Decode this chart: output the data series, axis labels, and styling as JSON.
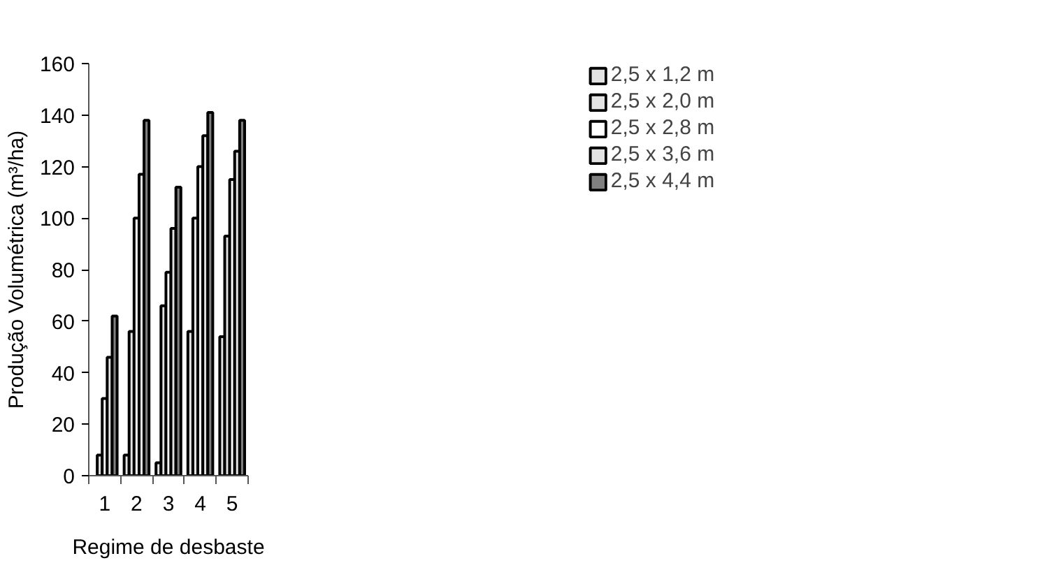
{
  "chart_data": {
    "type": "bar",
    "xlabel": "Regime de desbaste",
    "ylabel": "Produção Volumétrica (m³/ha)",
    "categories": [
      "1",
      "2",
      "3",
      "4",
      "5"
    ],
    "series": [
      {
        "name": "2,5 x 1,2 m",
        "color": "#e3e3e3",
        "values": [
          null,
          8,
          5,
          56,
          54
        ]
      },
      {
        "name": "2,5 x 2,0 m",
        "color": "#e3e3e3",
        "values": [
          8,
          56,
          66,
          100,
          93
        ]
      },
      {
        "name": "2,5 x 2,8 m",
        "color": "#ffffff",
        "values": [
          30,
          100,
          79,
          120,
          115
        ]
      },
      {
        "name": "2,5 x 3,6 m",
        "color": "#e3e3e3",
        "values": [
          46,
          117,
          96,
          132,
          126
        ]
      },
      {
        "name": "2,5 x 4,4 m",
        "color": "#808080",
        "values": [
          62,
          138,
          112,
          141,
          138
        ]
      }
    ],
    "ylim": [
      0,
      160
    ],
    "yticks": [
      0,
      20,
      40,
      60,
      80,
      100,
      120,
      140,
      160
    ],
    "grid": false,
    "legend": "top right"
  }
}
